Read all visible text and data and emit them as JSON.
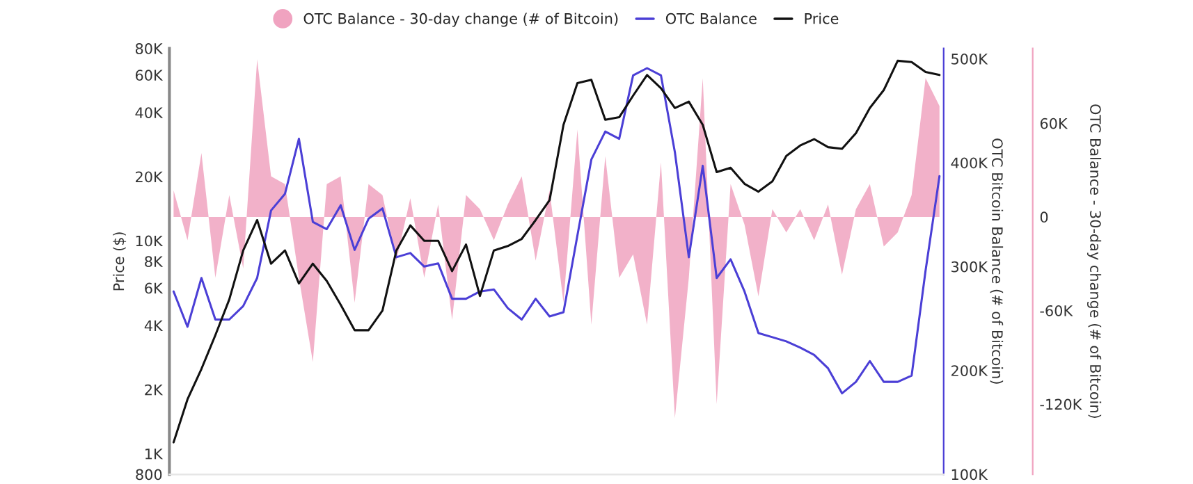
{
  "chart_data": {
    "type": "line",
    "categories": [
      null,
      null,
      null,
      null,
      null,
      null,
      null,
      null,
      null,
      null,
      null,
      null,
      null,
      null,
      null,
      null,
      null,
      null,
      null,
      null,
      null,
      null,
      null,
      null,
      null,
      null,
      null,
      null,
      null,
      null,
      null,
      null,
      null,
      null,
      null,
      null,
      null,
      null,
      null,
      null,
      null,
      null,
      null,
      null,
      null,
      null,
      null,
      null,
      null,
      null,
      null,
      null,
      null,
      null,
      null,
      null
    ],
    "series": [
      {
        "name": "OTC Balance - 30-day change (# of Bitcoin)",
        "type": "area",
        "axis": "y3",
        "color": "#f0a3c0",
        "values": [
          17000,
          -15000,
          41000,
          -39000,
          14000,
          -33000,
          101000,
          26000,
          21000,
          -39000,
          -93000,
          21000,
          26000,
          -55000,
          21000,
          14000,
          -28000,
          12000,
          -39000,
          8000,
          -66000,
          14000,
          5000,
          -15000,
          8000,
          26000,
          -28000,
          17000,
          -55000,
          56000,
          -69000,
          39000,
          -39000,
          -24000,
          -69000,
          35000,
          -129000,
          -39000,
          89000,
          -120000,
          21000,
          -5000,
          -51000,
          5000,
          -10000,
          5000,
          -15000,
          8000,
          -37000,
          5000,
          21000,
          -19000,
          -10000,
          14000,
          89000,
          71000
        ]
      },
      {
        "name": "OTC Balance",
        "type": "line",
        "axis": "y2",
        "color": "#4b3fd6",
        "values": [
          276000,
          242000,
          289000,
          249000,
          249000,
          262000,
          289000,
          354000,
          370000,
          423000,
          343000,
          336000,
          359000,
          316000,
          346000,
          356000,
          309000,
          313000,
          300000,
          303000,
          269000,
          269000,
          276000,
          278000,
          260000,
          249000,
          269000,
          252000,
          256000,
          330000,
          403000,
          430000,
          423000,
          484000,
          491000,
          484000,
          410000,
          309000,
          397000,
          289000,
          307000,
          276000,
          236000,
          232000,
          228000,
          222000,
          215000,
          202000,
          178000,
          189000,
          209000,
          189000,
          189000,
          195000,
          296000,
          387000
        ]
      },
      {
        "name": "Price",
        "axis": "y",
        "color": "#111111",
        "values": [
          1130,
          1800,
          2500,
          3600,
          5300,
          9000,
          12500,
          7800,
          9000,
          6300,
          7800,
          6470,
          5000,
          3800,
          3800,
          4700,
          9000,
          11800,
          10000,
          10000,
          7200,
          9600,
          5500,
          9000,
          9440,
          10200,
          12500,
          15500,
          35000,
          55000,
          57000,
          37000,
          38000,
          48000,
          60000,
          52000,
          42000,
          45000,
          35000,
          21000,
          22000,
          18500,
          17000,
          19000,
          25000,
          28000,
          30000,
          27500,
          27000,
          32000,
          42000,
          51000,
          70000,
          69000,
          62000,
          60000
        ]
      }
    ],
    "ylabel": "Price ($)",
    "y2label": "OTC Bitcoin Balance (# of Bitcoin)",
    "y3label": "OTC Balance - 30-day change (# of Bitcoin)",
    "log": true,
    "ylim": [
      800,
      80000
    ],
    "yticks": [
      {
        "value": 800,
        "label": "800"
      },
      {
        "value": 1000,
        "label": "1K"
      },
      {
        "value": 2000,
        "label": "2K"
      },
      {
        "value": 4000,
        "label": "4K"
      },
      {
        "value": 6000,
        "label": "6K"
      },
      {
        "value": 8000,
        "label": "8K"
      },
      {
        "value": 10000,
        "label": "10K"
      },
      {
        "value": 20000,
        "label": "20K"
      },
      {
        "value": 40000,
        "label": "40K"
      },
      {
        "value": 60000,
        "label": "60K"
      },
      {
        "value": 80000,
        "label": "80K"
      }
    ],
    "y2lim": [
      100000,
      510000
    ],
    "y2ticks": [
      {
        "value": 100000,
        "label": "100K"
      },
      {
        "value": 200000,
        "label": "200K"
      },
      {
        "value": 300000,
        "label": "300K"
      },
      {
        "value": 400000,
        "label": "400K"
      },
      {
        "value": 500000,
        "label": "500K"
      }
    ],
    "y3lim": [
      -165000,
      108000
    ],
    "y3ticks": [
      {
        "value": -120000,
        "label": "-120K"
      },
      {
        "value": -60000,
        "label": "-60K"
      },
      {
        "value": 0,
        "label": "0"
      },
      {
        "value": 60000,
        "label": "60K"
      }
    ],
    "tick_labels": "y",
    "legend": "top",
    "grid": false
  }
}
